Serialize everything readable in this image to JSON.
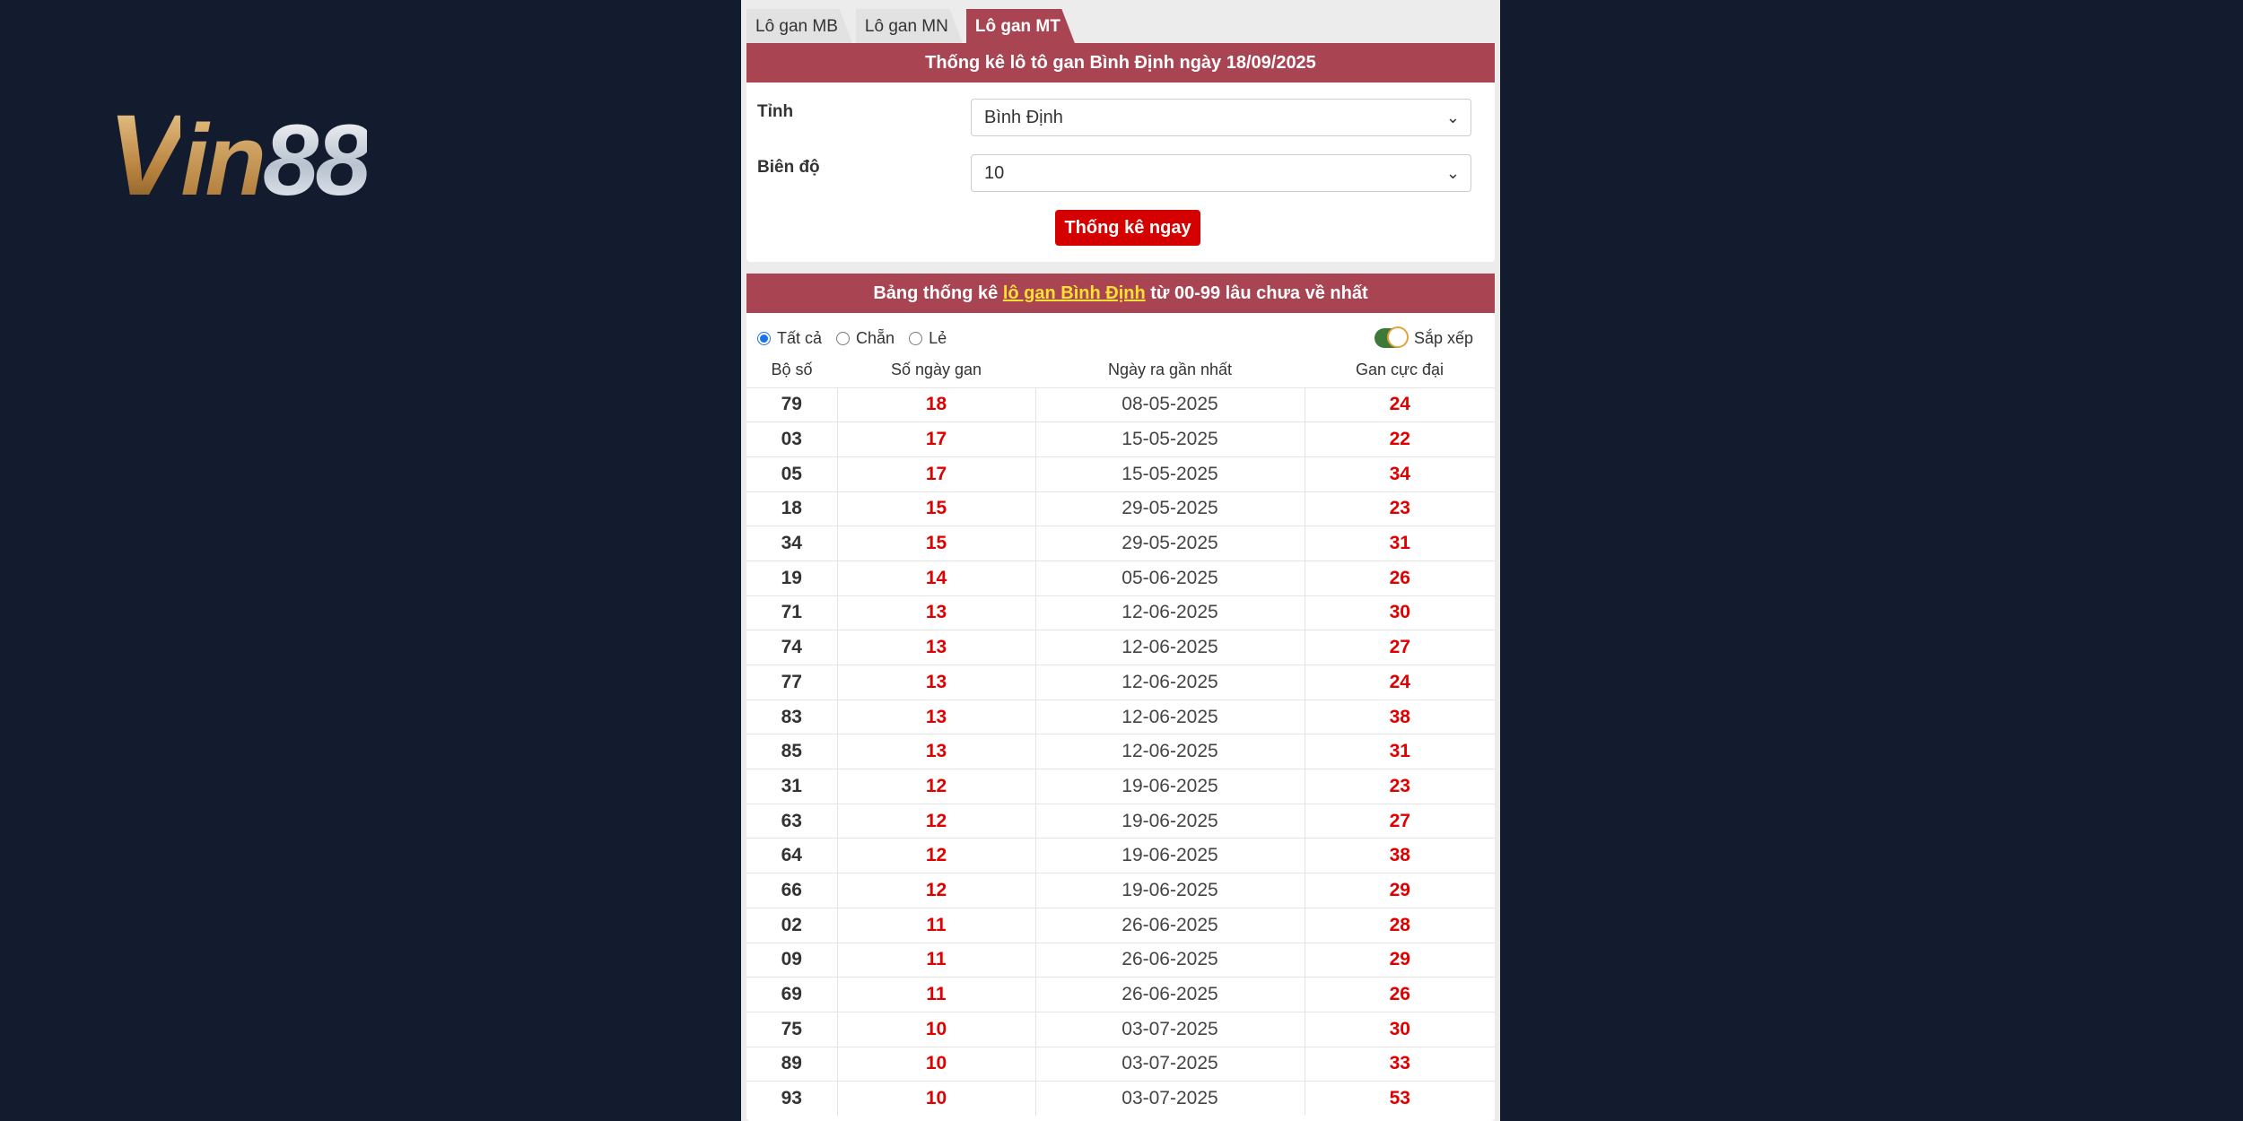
{
  "logo": {
    "text": "Vin88"
  },
  "tabs": [
    {
      "label": "Lô gan MB",
      "active": false
    },
    {
      "label": "Lô gan MN",
      "active": false
    },
    {
      "label": "Lô gan MT",
      "active": true
    }
  ],
  "form": {
    "title": "Thống kê lô tô gan Bình Định ngày 18/09/2025",
    "province_label": "Tỉnh",
    "province_value": "Bình Định",
    "range_label": "Biên độ",
    "range_value": "10",
    "submit_label": "Thống kê ngay"
  },
  "table_section": {
    "title_prefix": "Bảng thống kê ",
    "title_link": "lô gan Bình Định",
    "title_suffix": " từ 00-99 lâu chưa về nhất",
    "filters": [
      {
        "label": "Tất cả",
        "checked": true
      },
      {
        "label": "Chẵn",
        "checked": false
      },
      {
        "label": "Lẻ",
        "checked": false
      }
    ],
    "sort_label": "Sắp xếp",
    "sort_on": true,
    "columns": [
      "Bộ số",
      "Số ngày gan",
      "Ngày ra gần nhất",
      "Gan cực đại"
    ],
    "rows": [
      [
        "79",
        "18",
        "08-05-2025",
        "24"
      ],
      [
        "03",
        "17",
        "15-05-2025",
        "22"
      ],
      [
        "05",
        "17",
        "15-05-2025",
        "34"
      ],
      [
        "18",
        "15",
        "29-05-2025",
        "23"
      ],
      [
        "34",
        "15",
        "29-05-2025",
        "31"
      ],
      [
        "19",
        "14",
        "05-06-2025",
        "26"
      ],
      [
        "71",
        "13",
        "12-06-2025",
        "30"
      ],
      [
        "74",
        "13",
        "12-06-2025",
        "27"
      ],
      [
        "77",
        "13",
        "12-06-2025",
        "24"
      ],
      [
        "83",
        "13",
        "12-06-2025",
        "38"
      ],
      [
        "85",
        "13",
        "12-06-2025",
        "31"
      ],
      [
        "31",
        "12",
        "19-06-2025",
        "23"
      ],
      [
        "63",
        "12",
        "19-06-2025",
        "27"
      ],
      [
        "64",
        "12",
        "19-06-2025",
        "38"
      ],
      [
        "66",
        "12",
        "19-06-2025",
        "29"
      ],
      [
        "02",
        "11",
        "26-06-2025",
        "28"
      ],
      [
        "09",
        "11",
        "26-06-2025",
        "29"
      ],
      [
        "69",
        "11",
        "26-06-2025",
        "26"
      ],
      [
        "75",
        "10",
        "03-07-2025",
        "30"
      ],
      [
        "89",
        "10",
        "03-07-2025",
        "33"
      ],
      [
        "93",
        "10",
        "03-07-2025",
        "53"
      ]
    ]
  },
  "colors": {
    "header": "#a94452",
    "accent_red": "#e00000",
    "button": "#d50000",
    "background": "#131c2e",
    "link": "#ffe033"
  }
}
